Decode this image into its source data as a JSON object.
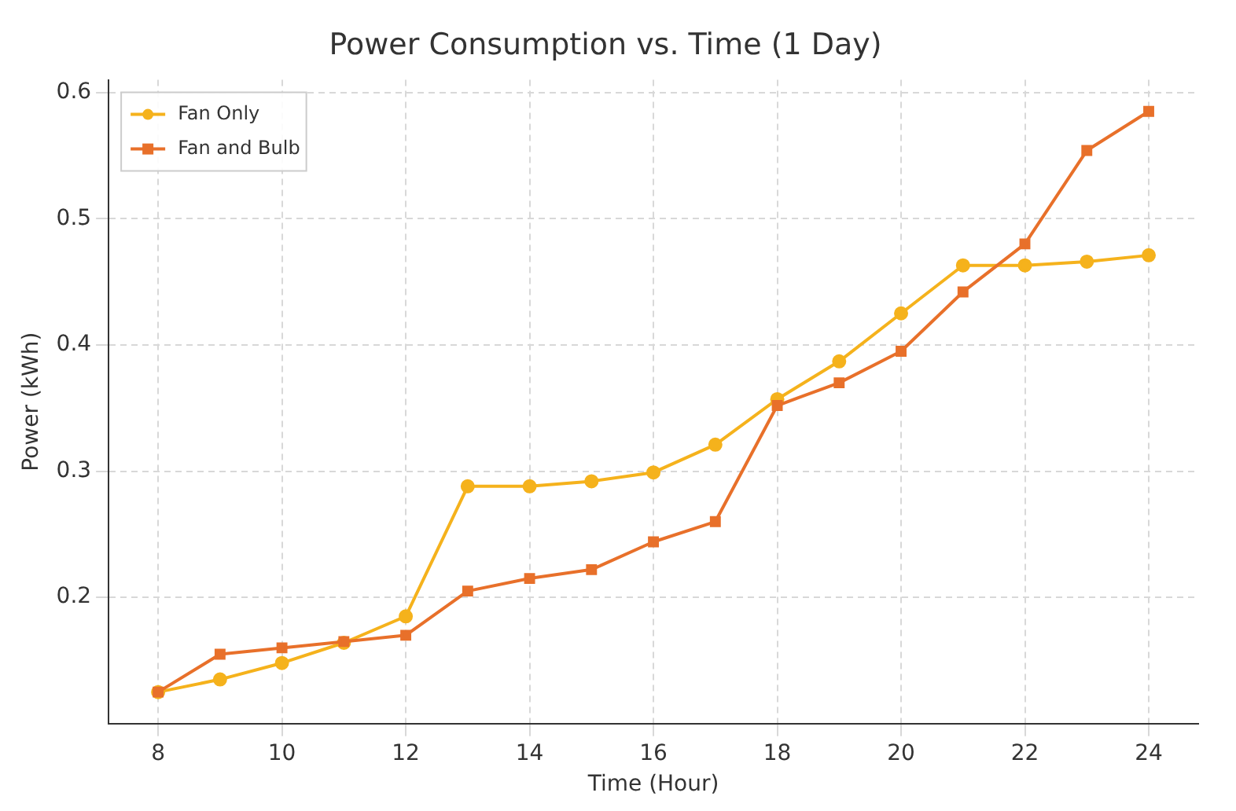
{
  "chart_data": {
    "type": "line",
    "title": "Power Consumption vs. Time (1 Day)",
    "xlabel": "Time (Hour)",
    "ylabel": "Power (kWh)",
    "x": [
      8,
      9,
      10,
      11,
      12,
      13,
      14,
      15,
      16,
      17,
      18,
      19,
      20,
      21,
      22,
      23,
      24
    ],
    "series": [
      {
        "name": "Fan Only",
        "color": "#f5b21c",
        "marker": "circle",
        "values": [
          0.125,
          0.135,
          0.148,
          0.164,
          0.185,
          0.288,
          0.288,
          0.292,
          0.299,
          0.321,
          0.357,
          0.387,
          0.425,
          0.463,
          0.463,
          0.466,
          0.471
        ]
      },
      {
        "name": "Fan and Bulb",
        "color": "#e8702a",
        "marker": "square",
        "values": [
          0.125,
          0.155,
          0.16,
          0.165,
          0.17,
          0.205,
          0.215,
          0.222,
          0.244,
          0.26,
          0.352,
          0.37,
          0.395,
          0.442,
          0.48,
          0.554,
          0.585
        ]
      }
    ],
    "xlim": [
      7.2,
      24.8
    ],
    "xticks": [
      8,
      10,
      12,
      14,
      16,
      18,
      20,
      22,
      24
    ],
    "ylim": [
      0.1,
      0.61
    ],
    "yticks": [
      0.2,
      0.3,
      0.4,
      0.5,
      0.6
    ],
    "grid": true,
    "legend": "top left",
    "line_style": "solid"
  }
}
